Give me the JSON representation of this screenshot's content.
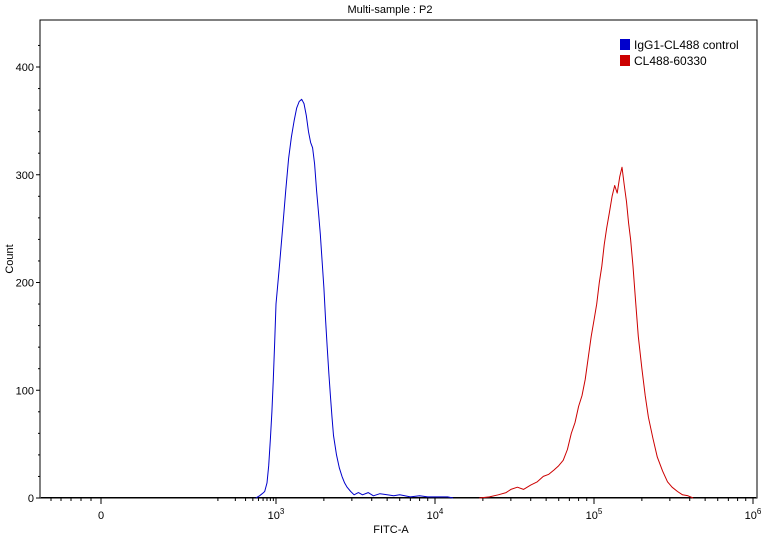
{
  "chart_data": {
    "type": "line",
    "title": "Multi-sample : P2",
    "xlabel": "FITC-A",
    "ylabel": "Count",
    "x_scale": "biexponential",
    "xlim": [
      -600,
      1000000
    ],
    "ylim": [
      0,
      440
    ],
    "x_ticks": [
      {
        "value": 0,
        "base": "0",
        "exp": ""
      },
      {
        "value": 1000,
        "base": "10",
        "exp": "3"
      },
      {
        "value": 10000,
        "base": "10",
        "exp": "4"
      },
      {
        "value": 100000,
        "base": "10",
        "exp": "5"
      },
      {
        "value": 1000000,
        "base": "10",
        "exp": "6"
      }
    ],
    "y_ticks": [
      0,
      100,
      200,
      300,
      400
    ],
    "grid": false,
    "legend_position": "top-right",
    "series": [
      {
        "name": "IgG1-CL488 control",
        "color": "#0000cc",
        "points": [
          [
            450,
            0
          ],
          [
            520,
            2
          ],
          [
            580,
            4
          ],
          [
            640,
            6
          ],
          [
            700,
            14
          ],
          [
            750,
            30
          ],
          [
            800,
            55
          ],
          [
            850,
            80
          ],
          [
            900,
            110
          ],
          [
            950,
            145
          ],
          [
            1000,
            180
          ],
          [
            1050,
            215
          ],
          [
            1100,
            250
          ],
          [
            1150,
            285
          ],
          [
            1200,
            315
          ],
          [
            1250,
            335
          ],
          [
            1300,
            350
          ],
          [
            1350,
            362
          ],
          [
            1400,
            368
          ],
          [
            1450,
            370
          ],
          [
            1500,
            366
          ],
          [
            1550,
            355
          ],
          [
            1600,
            340
          ],
          [
            1650,
            330
          ],
          [
            1700,
            325
          ],
          [
            1750,
            310
          ],
          [
            1800,
            285
          ],
          [
            1850,
            265
          ],
          [
            1900,
            245
          ],
          [
            1950,
            220
          ],
          [
            2000,
            195
          ],
          [
            2050,
            165
          ],
          [
            2100,
            140
          ],
          [
            2150,
            115
          ],
          [
            2200,
            95
          ],
          [
            2250,
            75
          ],
          [
            2300,
            58
          ],
          [
            2400,
            40
          ],
          [
            2500,
            28
          ],
          [
            2600,
            20
          ],
          [
            2700,
            14
          ],
          [
            2800,
            10
          ],
          [
            2950,
            6
          ],
          [
            3100,
            3
          ],
          [
            3300,
            5
          ],
          [
            3500,
            3
          ],
          [
            3800,
            5
          ],
          [
            4100,
            2
          ],
          [
            4500,
            4
          ],
          [
            5000,
            3
          ],
          [
            5500,
            2
          ],
          [
            6000,
            3
          ],
          [
            7000,
            1
          ],
          [
            8000,
            2
          ],
          [
            9000,
            1
          ],
          [
            10500,
            1
          ],
          [
            12000,
            1
          ],
          [
            13000,
            0
          ]
        ]
      },
      {
        "name": "CL488-60330",
        "color": "#cc0000",
        "points": [
          [
            19000,
            0
          ],
          [
            22000,
            1
          ],
          [
            25000,
            3
          ],
          [
            28000,
            5
          ],
          [
            30000,
            8
          ],
          [
            33000,
            10
          ],
          [
            36000,
            8
          ],
          [
            40000,
            12
          ],
          [
            44000,
            15
          ],
          [
            48000,
            20
          ],
          [
            52000,
            22
          ],
          [
            56000,
            26
          ],
          [
            60000,
            30
          ],
          [
            64000,
            35
          ],
          [
            68000,
            45
          ],
          [
            72000,
            60
          ],
          [
            76000,
            70
          ],
          [
            80000,
            85
          ],
          [
            84000,
            95
          ],
          [
            88000,
            110
          ],
          [
            92000,
            130
          ],
          [
            96000,
            150
          ],
          [
            100000,
            165
          ],
          [
            104000,
            180
          ],
          [
            108000,
            200
          ],
          [
            112000,
            215
          ],
          [
            116000,
            235
          ],
          [
            120000,
            250
          ],
          [
            125000,
            265
          ],
          [
            130000,
            280
          ],
          [
            135000,
            290
          ],
          [
            140000,
            283
          ],
          [
            145000,
            298
          ],
          [
            150000,
            307
          ],
          [
            155000,
            290
          ],
          [
            160000,
            275
          ],
          [
            165000,
            255
          ],
          [
            170000,
            240
          ],
          [
            176000,
            215
          ],
          [
            182000,
            185
          ],
          [
            190000,
            150
          ],
          [
            200000,
            120
          ],
          [
            210000,
            95
          ],
          [
            220000,
            75
          ],
          [
            235000,
            55
          ],
          [
            250000,
            38
          ],
          [
            270000,
            25
          ],
          [
            290000,
            15
          ],
          [
            310000,
            10
          ],
          [
            335000,
            6
          ],
          [
            360000,
            3
          ],
          [
            390000,
            2
          ],
          [
            420000,
            0
          ]
        ]
      }
    ]
  }
}
